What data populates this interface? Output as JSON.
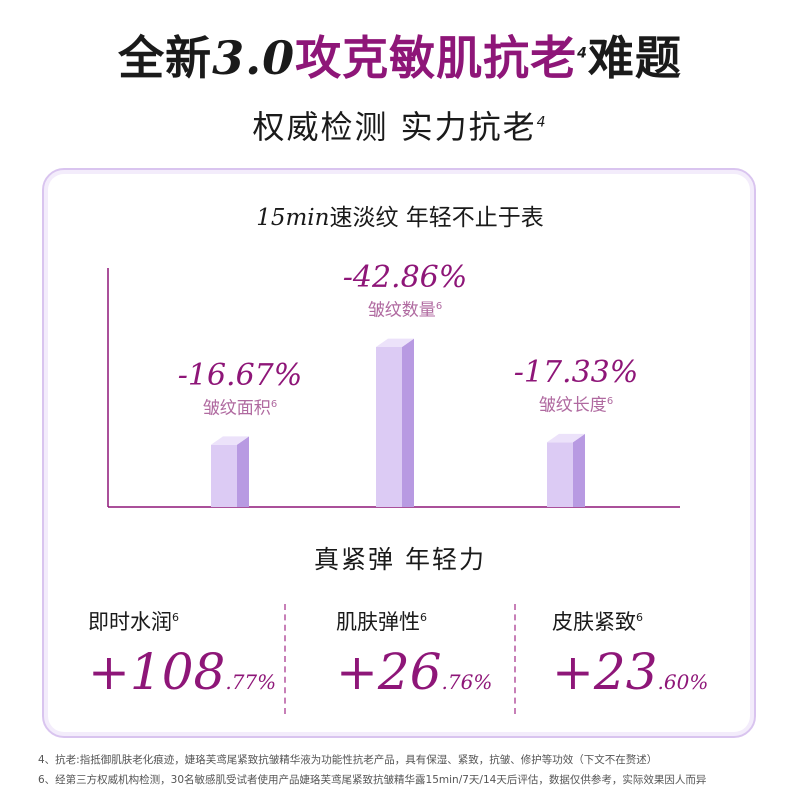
{
  "headline": {
    "prefix": "全新",
    "version": "3.0",
    "accent": "攻克敏肌抗老",
    "note_mark": "4",
    "suffix": "难题"
  },
  "subline": {
    "text": "权威检测  实力抗老",
    "note_mark": "4"
  },
  "chart_title": {
    "num": "15min",
    "text": "速淡纹 年轻不止于表"
  },
  "chart_data": {
    "type": "bar",
    "title": "15min速淡纹 年轻不止于表",
    "categories": [
      "皱纹面积",
      "皱纹数量",
      "皱纹长度"
    ],
    "values": [
      -16.67,
      -42.86,
      -17.33
    ],
    "unit": "%",
    "labels": [
      "-16.67%",
      "-42.86%",
      "-17.33%"
    ],
    "note_mark": "6",
    "xlabel": "",
    "ylabel": ""
  },
  "section_title": "真紧弹 年轻力",
  "stats": [
    {
      "name": "即时水润",
      "note_mark": "6",
      "int": "+108",
      "dec": ".77%"
    },
    {
      "name": "肌肤弹性",
      "note_mark": "6",
      "int": "+26",
      "dec": ".76%"
    },
    {
      "name": "皮肤紧致",
      "note_mark": "6",
      "int": "+23",
      "dec": ".60%"
    }
  ],
  "footnotes": [
    "4、抗老:指抵御肌肤老化痕迹，婕珞芙鸢尾紧致抗皱精华液为功能性抗老产品，具有保湿、紧致，抗皱、修护等功效（下文不在赘述）",
    "6、经第三方权威机构检测，30名敏感肌受试者使用产品婕珞芙鸢尾紧致抗皱精华露15min/7天/14天后评估，数据仅供参考，实际效果因人而异"
  ],
  "colors": {
    "accent": "#8e1678",
    "bar_front": "#dccbf4",
    "bar_side": "#b89ae2",
    "bar_top": "#ece2fa",
    "axis": "#8e1678"
  }
}
